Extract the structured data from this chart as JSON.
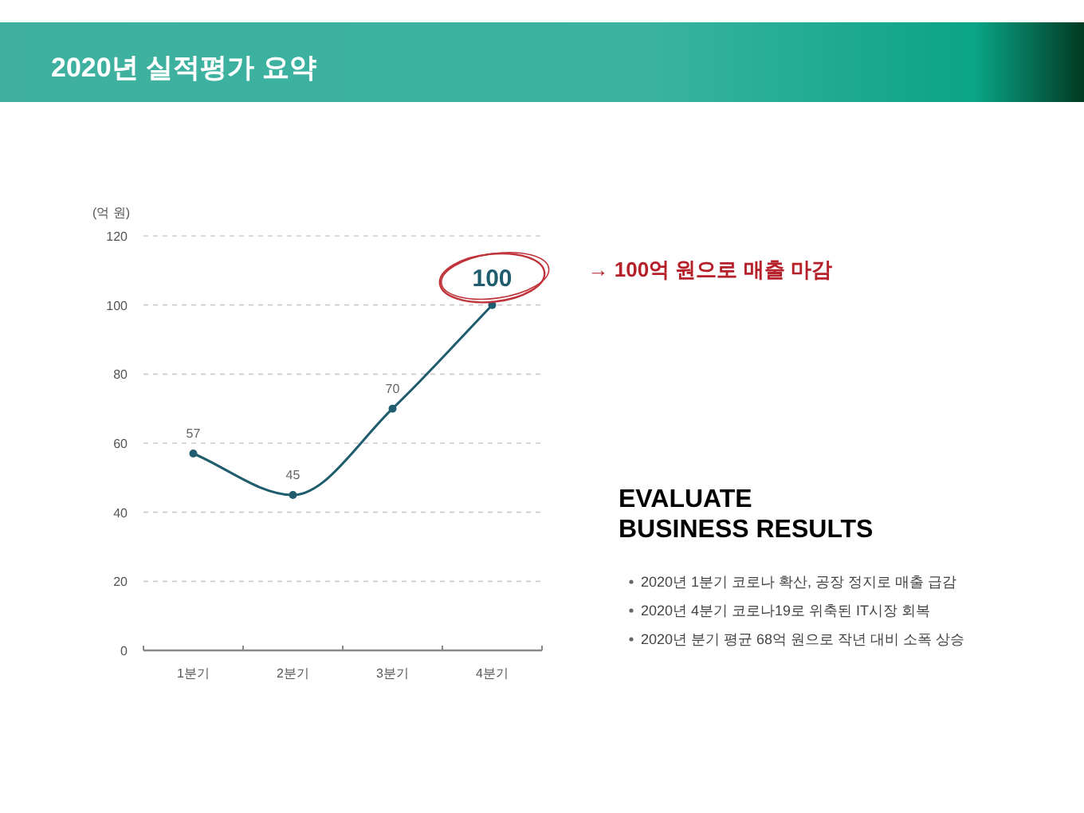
{
  "chart_data": {
    "type": "line",
    "title": "2020년 실적평가 요약",
    "ylabel": "(억 원)",
    "categories": [
      "1분기",
      "2분기",
      "3분기",
      "4분기"
    ],
    "values": [
      57,
      45,
      70,
      100
    ],
    "color": "#1f5c6e",
    "ylim": [
      0,
      120
    ],
    "yticks": [
      0,
      20,
      40,
      60,
      80,
      100,
      120
    ],
    "grid": "y",
    "data_labels": true,
    "marker": "circle",
    "annotations": [
      "→ 100억 원으로 매출 마감",
      "EVALUATE\nBUSINESS RESULTS",
      "2020년 1분기 코로나 확산, 공장 정지로 매출 급감",
      "2020년 4분기 코로나19로 위축된 IT시장 회복",
      "2020년 분기 평균 68억 원으로 작년 대비 소폭 상승"
    ]
  }
}
